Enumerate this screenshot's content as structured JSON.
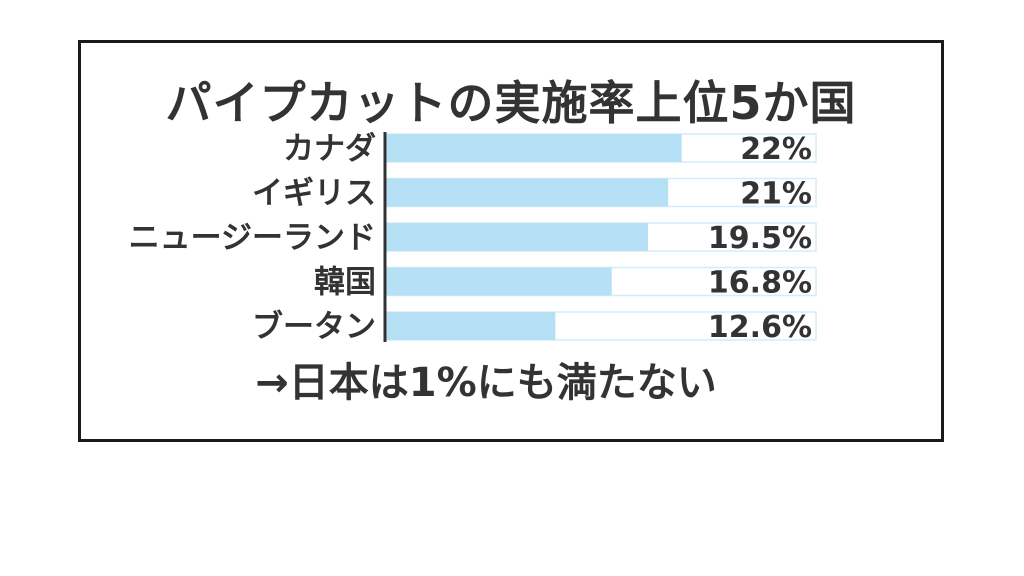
{
  "chart_data": {
    "type": "bar",
    "orientation": "horizontal",
    "title": "パイプカットの実施率上位5か国",
    "categories": [
      "カナダ",
      "イギリス",
      "ニュージーランド",
      "韓国",
      "ブータン"
    ],
    "values": [
      22,
      21,
      19.5,
      16.8,
      12.6
    ],
    "value_labels": [
      "22%",
      "21%",
      "19.5%",
      "16.8%",
      "12.6%"
    ],
    "xlim": [
      0,
      32
    ],
    "unit": "%",
    "grid": false,
    "legend": "none",
    "bar_color": "#b5e0f5",
    "track_color": "#ffffff",
    "axis_color": "#333333"
  },
  "note": "→日本は1%にも満たない"
}
